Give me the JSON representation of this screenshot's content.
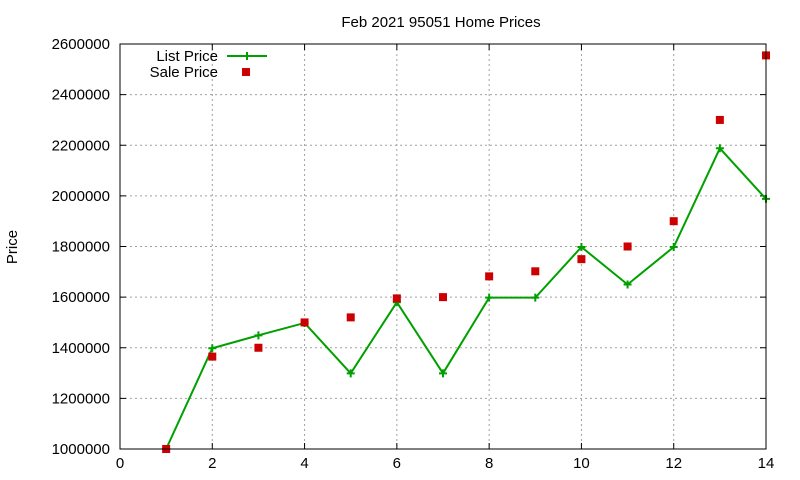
{
  "chart_data": {
    "type": "line",
    "title": "Feb 2021 95051 Home Prices",
    "xlabel": "",
    "ylabel": "Price",
    "xlim": [
      0,
      14
    ],
    "ylim": [
      1000000,
      2600000
    ],
    "x_ticks": [
      "0",
      "2",
      "4",
      "6",
      "8",
      "10",
      "12",
      "14"
    ],
    "y_ticks": [
      "1000000",
      "1200000",
      "1400000",
      "1600000",
      "1800000",
      "2000000",
      "2200000",
      "2400000",
      "2600000"
    ],
    "grid": true,
    "legend_position": "top-left",
    "series": [
      {
        "name": "List Price",
        "style": "line with plus markers",
        "color": "#00a000",
        "x": [
          1,
          2,
          3,
          4,
          5,
          6,
          7,
          8,
          9,
          10,
          11,
          12,
          13,
          14
        ],
        "y": [
          1000000,
          1398000,
          1449000,
          1498000,
          1299000,
          1580000,
          1299000,
          1598000,
          1598000,
          1798000,
          1650000,
          1798000,
          2188000,
          1988000
        ]
      },
      {
        "name": "Sale Price",
        "style": "square markers",
        "color": "#cc0000",
        "x": [
          1,
          2,
          3,
          4,
          5,
          6,
          7,
          8,
          9,
          10,
          11,
          12,
          13,
          14
        ],
        "y": [
          1000000,
          1365000,
          1400000,
          1500000,
          1520000,
          1595000,
          1600000,
          1682000,
          1702000,
          1750000,
          1800000,
          1900000,
          2300000,
          2555000
        ]
      }
    ]
  }
}
